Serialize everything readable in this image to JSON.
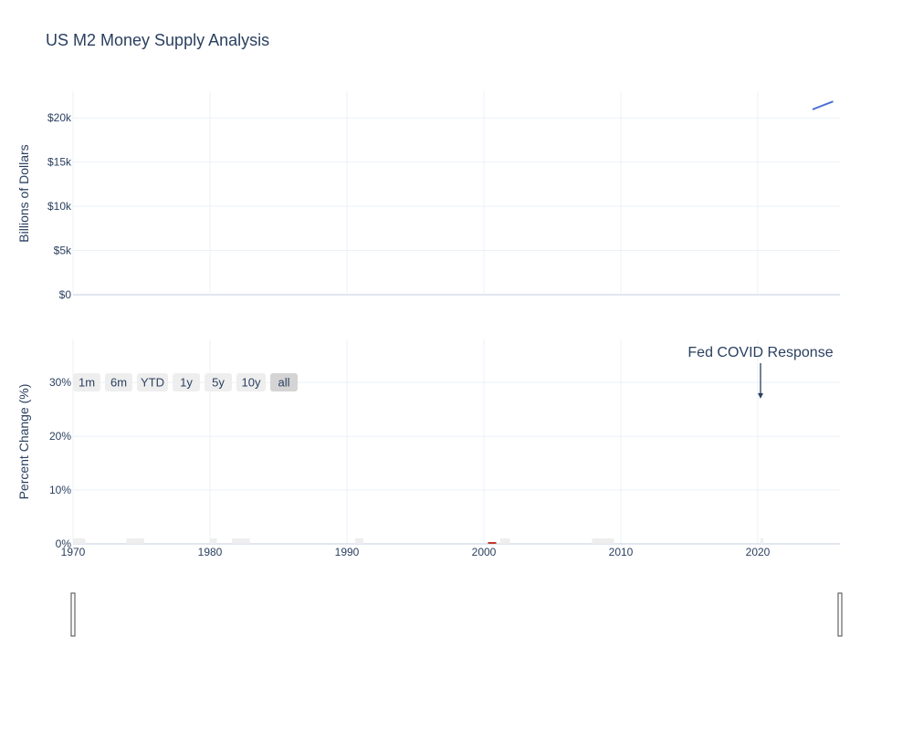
{
  "chart_data": {
    "title": "US M2 Money Supply Analysis",
    "x_range": [
      1970,
      2026
    ],
    "x_ticks": [
      1970,
      1980,
      1990,
      2000,
      2010,
      2020
    ],
    "top": {
      "type": "line",
      "ylabel": "Billions of Dollars",
      "ylim": [
        0,
        23000
      ],
      "y_ticks": [
        0,
        5000,
        10000,
        15000,
        20000
      ],
      "y_tick_labels": [
        "$0",
        "$5k",
        "$10k",
        "$15k",
        "$20k"
      ],
      "color": "#4c6fd8",
      "series": [
        {
          "x": [
            2024.0,
            2024.5,
            2025.0,
            2025.5
          ],
          "y": [
            20950,
            21250,
            21550,
            21850
          ]
        }
      ]
    },
    "bottom": {
      "type": "bar",
      "ylabel": "Percent Change (%)",
      "ylim": [
        0,
        38
      ],
      "y_ticks": [
        0,
        10,
        20,
        30
      ],
      "y_tick_labels": [
        "0%",
        "10%",
        "20%",
        "30%"
      ],
      "recession_color": "#eeeeee",
      "recessions": [
        [
          1970.0,
          1970.9
        ],
        [
          1973.9,
          1975.2
        ],
        [
          1980.0,
          1980.5
        ],
        [
          1981.6,
          1982.9
        ],
        [
          1990.6,
          1991.2
        ],
        [
          2001.2,
          2001.9
        ],
        [
          2007.9,
          2009.5
        ],
        [
          2020.2,
          2020.4
        ]
      ],
      "highlight_color": "#c0392b",
      "highlights": [
        [
          2000.3,
          2000.9
        ]
      ],
      "annotation": {
        "text": "Fed COVID Response",
        "x": 2020.2,
        "y": 27
      },
      "range_buttons": [
        "1m",
        "6m",
        "YTD",
        "1y",
        "5y",
        "10y",
        "all"
      ],
      "active_button": "all"
    }
  }
}
